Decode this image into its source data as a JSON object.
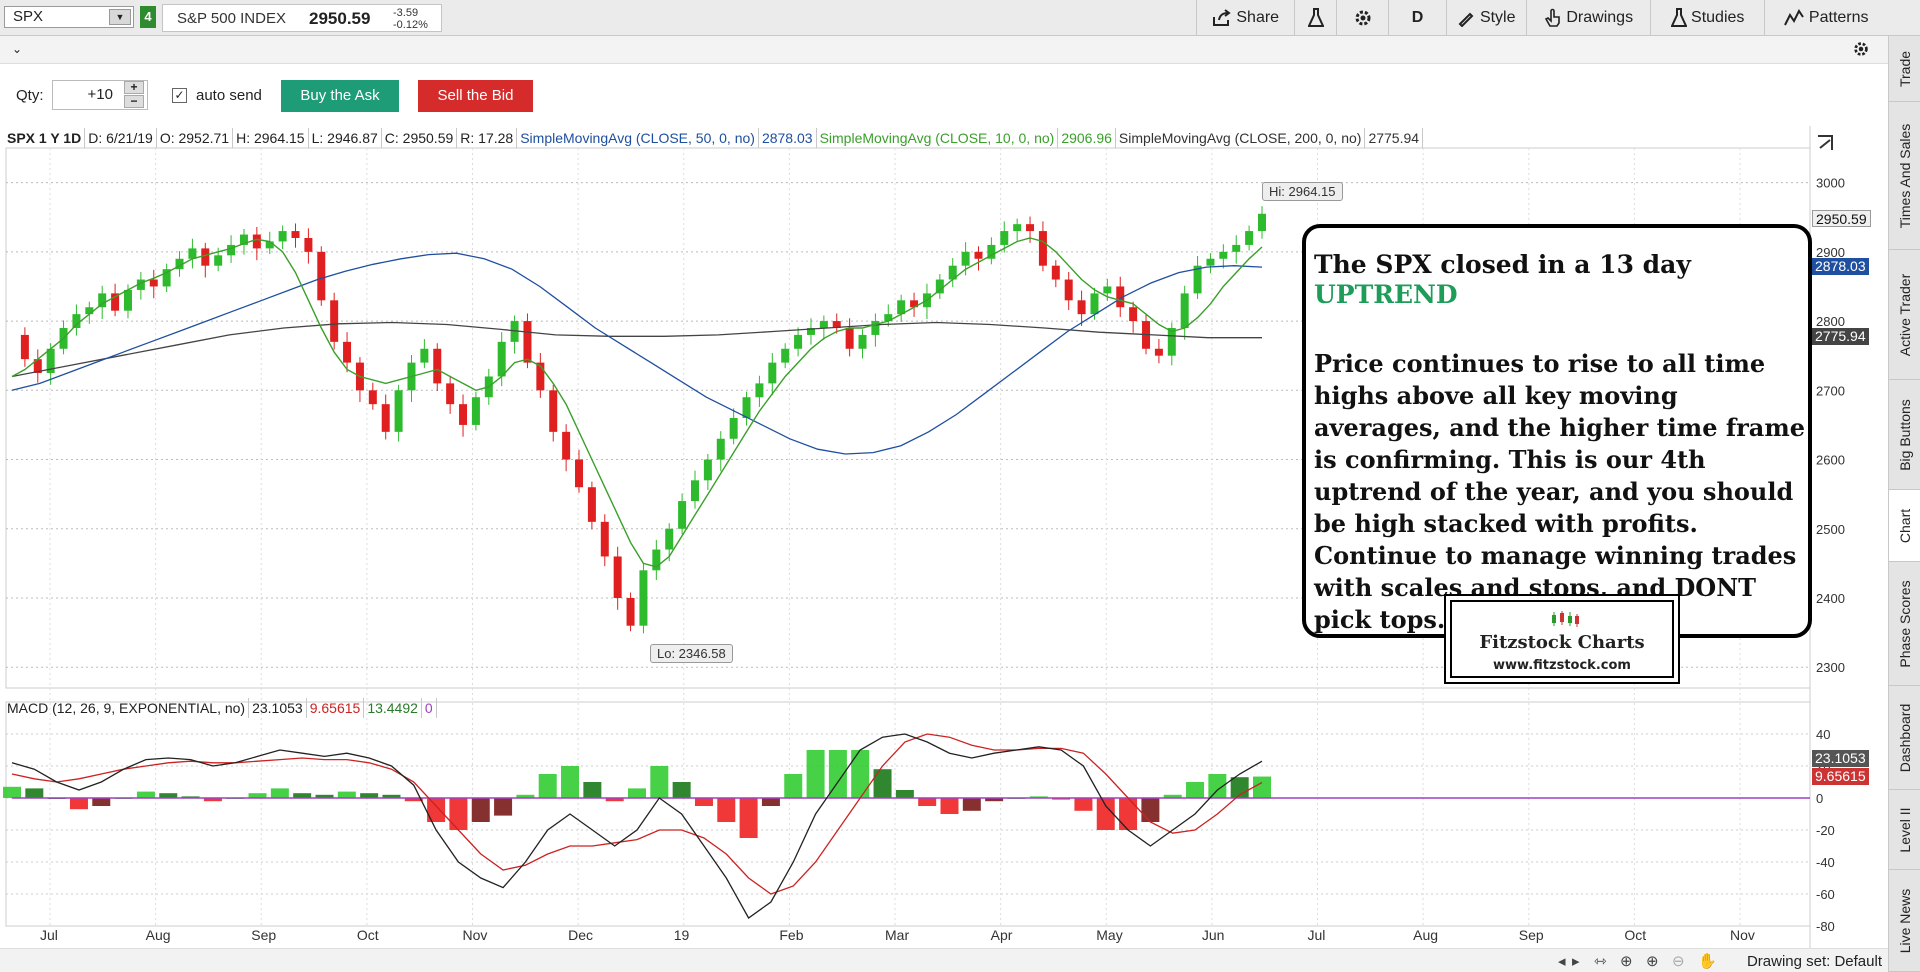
{
  "toolbar": {
    "symbol": "SPX",
    "link_group": "4",
    "index_name": "S&P 500 INDEX",
    "last_price": "2950.59",
    "net_change": "-3.59",
    "pct_change": "-0.12%",
    "share_label": "Share",
    "aggregation": "D",
    "style_label": "Style",
    "drawings_label": "Drawings",
    "studies_label": "Studies",
    "patterns_label": "Patterns"
  },
  "order_bar": {
    "qty_label": "Qty:",
    "qty_value": "+10",
    "auto_send_label": "auto send",
    "buy_label": "Buy the Ask",
    "sell_label": "Sell the Bid"
  },
  "status": {
    "title": "SPX 1 Y 1D",
    "date": "D: 6/21/19",
    "open": "O: 2952.71",
    "high": "H: 2964.15",
    "low": "L: 2946.87",
    "close": "C: 2950.59",
    "range": "R: 17.28",
    "sma50_label": "SimpleMovingAvg (CLOSE, 50, 0, no)",
    "sma50_value": "2878.03",
    "sma10_label": "SimpleMovingAvg (CLOSE, 10, 0, no)",
    "sma10_value": "2906.96",
    "sma200_label": "SimpleMovingAvg (CLOSE, 200, 0, no)",
    "sma200_value": "2775.94"
  },
  "macd_status": {
    "label": "MACD (12, 26, 9, EXPONENTIAL, no)",
    "value": "23.1053",
    "avg": "9.65615",
    "diff": "13.4492",
    "zero": "0"
  },
  "price_tags": {
    "last": "2950.59",
    "sma50": "2878.03",
    "sma200": "2775.94",
    "macd": "23.1053",
    "macd_avg": "9.65615"
  },
  "hilo": {
    "hi": "Hi: 2964.15",
    "lo": "Lo: 2346.58"
  },
  "annotation": {
    "line1": "The SPX closed in a 13 day",
    "line2": "UPTREND",
    "body": "Price continues to rise to all time highs above all key moving averages, and the higher time frame is confirming.   This is our 4th uptrend of the year, and you should be high stacked with profits. Continue to manage winning trades with scales and stops, and DONT pick tops.",
    "logo_name": "Fitzstock Charts",
    "logo_url": "www.fitzstock.com"
  },
  "right_tabs": [
    "Trade",
    "Times And Sales",
    "Active Trader",
    "Big Buttons",
    "Chart",
    "Phase Scores",
    "Dashboard",
    "Level II",
    "Live News"
  ],
  "bottom": {
    "drawing_set": "Drawing set: Default"
  },
  "colors": {
    "up": "#2dbb2d",
    "down": "#e02020",
    "sma10": "#3aa02a",
    "sma50": "#1f4fa0",
    "sma200": "#444444",
    "macd_line": "#222222",
    "macd_avg": "#cc2222",
    "zero_line": "#a040c0",
    "accent_green": "#1e9c77",
    "accent_red": "#d62b2b"
  },
  "chart_data": [
    {
      "type": "candlestick",
      "title": "SPX 1 Y 1D",
      "x_ticks": [
        "Jul",
        "Aug",
        "Sep",
        "Oct",
        "Nov",
        "Dec",
        "19",
        "Feb",
        "Mar",
        "Apr",
        "May",
        "Jun",
        "Jul",
        "Aug",
        "Sep",
        "Oct",
        "Nov"
      ],
      "y_ticks": [
        2300,
        2400,
        2500,
        2600,
        2700,
        2800,
        2900,
        3000
      ],
      "ylim": [
        2270,
        3050
      ],
      "close_path": [
        2780,
        2745,
        2725,
        2760,
        2790,
        2810,
        2820,
        2840,
        2815,
        2845,
        2860,
        2850,
        2875,
        2890,
        2905,
        2880,
        2895,
        2910,
        2925,
        2905,
        2915,
        2930,
        2920,
        2900,
        2830,
        2770,
        2740,
        2700,
        2680,
        2640,
        2700,
        2740,
        2760,
        2710,
        2680,
        2650,
        2690,
        2720,
        2770,
        2800,
        2740,
        2700,
        2640,
        2600,
        2560,
        2510,
        2460,
        2400,
        2360,
        2440,
        2470,
        2500,
        2540,
        2570,
        2600,
        2630,
        2660,
        2690,
        2710,
        2740,
        2760,
        2780,
        2790,
        2800,
        2790,
        2760,
        2780,
        2800,
        2810,
        2830,
        2820,
        2840,
        2860,
        2880,
        2900,
        2890,
        2910,
        2930,
        2940,
        2930,
        2880,
        2860,
        2830,
        2810,
        2840,
        2850,
        2820,
        2800,
        2760,
        2750,
        2790,
        2840,
        2880,
        2890,
        2900,
        2910,
        2930,
        2955
      ],
      "sma10_path": [
        2720,
        2730,
        2745,
        2760,
        2775,
        2795,
        2810,
        2825,
        2835,
        2845,
        2855,
        2862,
        2870,
        2880,
        2890,
        2895,
        2900,
        2905,
        2912,
        2918,
        2915,
        2900,
        2870,
        2830,
        2790,
        2755,
        2730,
        2720,
        2715,
        2710,
        2715,
        2720,
        2725,
        2730,
        2720,
        2710,
        2700,
        2705,
        2720,
        2740,
        2745,
        2735,
        2710,
        2680,
        2640,
        2600,
        2560,
        2520,
        2480,
        2450,
        2445,
        2460,
        2490,
        2520,
        2550,
        2580,
        2610,
        2640,
        2670,
        2695,
        2720,
        2740,
        2760,
        2775,
        2785,
        2790,
        2790,
        2795,
        2800,
        2810,
        2820,
        2830,
        2845,
        2860,
        2875,
        2885,
        2895,
        2905,
        2915,
        2920,
        2915,
        2900,
        2880,
        2860,
        2845,
        2835,
        2830,
        2825,
        2810,
        2795,
        2785,
        2790,
        2805,
        2825,
        2850,
        2870,
        2890,
        2907
      ],
      "sma50_path": [
        2700,
        2710,
        2725,
        2740,
        2755,
        2770,
        2785,
        2800,
        2815,
        2830,
        2845,
        2860,
        2872,
        2882,
        2890,
        2896,
        2898,
        2890,
        2875,
        2850,
        2820,
        2790,
        2765,
        2740,
        2715,
        2690,
        2670,
        2650,
        2630,
        2615,
        2608,
        2610,
        2620,
        2640,
        2665,
        2695,
        2725,
        2755,
        2785,
        2810,
        2835,
        2855,
        2870,
        2878,
        2880,
        2878
      ],
      "sma200_path": [
        2720,
        2735,
        2750,
        2765,
        2780,
        2790,
        2796,
        2798,
        2795,
        2788,
        2780,
        2778,
        2778,
        2780,
        2785,
        2790,
        2795,
        2798,
        2795,
        2790,
        2784,
        2780,
        2776,
        2776
      ]
    },
    {
      "type": "line",
      "title": "MACD (12, 26, 9, EXPONENTIAL, no)",
      "y_ticks": [
        40,
        20,
        0,
        -20,
        -40,
        -60,
        -80
      ],
      "ylim": [
        -80,
        45
      ],
      "macd_path": [
        22,
        18,
        10,
        5,
        10,
        18,
        24,
        25,
        24,
        20,
        22,
        26,
        30,
        28,
        26,
        28,
        25,
        20,
        8,
        -20,
        -40,
        -50,
        -56,
        -40,
        -20,
        -10,
        -20,
        -30,
        -20,
        0,
        -10,
        -30,
        -50,
        -75,
        -65,
        -40,
        -10,
        10,
        30,
        38,
        40,
        35,
        28,
        25,
        28,
        30,
        32,
        30,
        20,
        -5,
        -20,
        -30,
        -20,
        -10,
        5,
        15,
        23
      ],
      "signal_path": [
        15,
        12,
        10,
        12,
        15,
        18,
        20,
        22,
        23,
        22,
        22,
        23,
        24,
        25,
        24,
        24,
        22,
        18,
        10,
        -5,
        -20,
        -35,
        -45,
        -42,
        -35,
        -30,
        -30,
        -28,
        -26,
        -20,
        -20,
        -25,
        -35,
        -50,
        -60,
        -55,
        -40,
        -20,
        0,
        20,
        35,
        40,
        38,
        33,
        30,
        30,
        31,
        31,
        28,
        15,
        0,
        -15,
        -22,
        -20,
        -10,
        2,
        9.7
      ],
      "histogram": [
        7,
        6,
        0,
        -7,
        -5,
        0,
        4,
        3,
        1,
        -2,
        0,
        3,
        6,
        3,
        2,
        4,
        3,
        2,
        -2,
        -15,
        -20,
        -15,
        -11,
        2,
        15,
        20,
        10,
        -2,
        6,
        20,
        10,
        -5,
        -15,
        -25,
        -5,
        15,
        30,
        30,
        30,
        18,
        5,
        -5,
        -10,
        -8,
        -2,
        0,
        1,
        -1,
        -8,
        -20,
        -20,
        -15,
        2,
        10,
        15,
        13,
        13.4
      ]
    }
  ]
}
